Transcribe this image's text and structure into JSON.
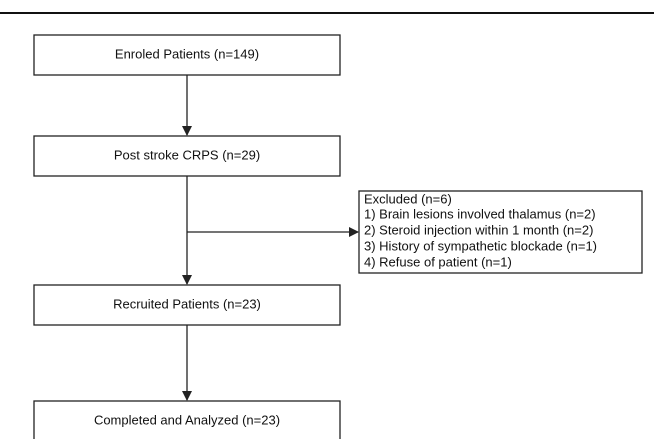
{
  "nodes": [
    {
      "label": "Enroled Patients (n=149)"
    },
    {
      "label": "Post stroke CRPS (n=29)"
    },
    {
      "label": "Recruited Patients (n=23)"
    },
    {
      "label": "Completed and Analyzed (n=23)"
    }
  ],
  "excluded": {
    "title": "Excluded (n=6)",
    "items": [
      "1) Brain lesions involved thalamus (n=2)",
      "2) Steroid injection within 1 month (n=2)",
      "3) History of sympathetic blockade (n=1)",
      "4) Refuse of patient (n=1)"
    ]
  }
}
